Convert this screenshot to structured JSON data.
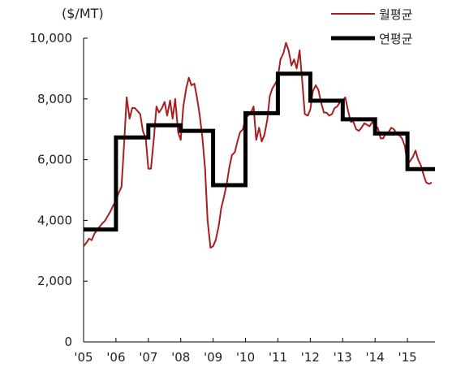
{
  "chart_data": {
    "type": "line",
    "unit_label": "($/MT)",
    "ylim": [
      0,
      10000
    ],
    "yticks": [
      0,
      2000,
      4000,
      6000,
      8000,
      10000
    ],
    "ytick_labels": [
      "0",
      "2,000",
      "4,000",
      "6,000",
      "8,000",
      "10,000"
    ],
    "xlim": [
      2005,
      2015.85
    ],
    "xticks": [
      2005,
      2006,
      2007,
      2008,
      2009,
      2010,
      2011,
      2012,
      2013,
      2014,
      2015
    ],
    "xtick_labels": [
      "'05",
      "'06",
      "'07",
      "'08",
      "'09",
      "'10",
      "'11",
      "'12",
      "'13",
      "'14",
      "'15"
    ],
    "grid": false,
    "legend_position": "top-right",
    "colors": {
      "monthly": "#a81e1e",
      "annual": "#000000"
    },
    "series": [
      {
        "name": "월평균",
        "style": "thin-line",
        "points": [
          [
            2005.0,
            3150
          ],
          [
            2005.08,
            3250
          ],
          [
            2005.17,
            3400
          ],
          [
            2005.25,
            3350
          ],
          [
            2005.33,
            3550
          ],
          [
            2005.42,
            3700
          ],
          [
            2005.5,
            3800
          ],
          [
            2005.58,
            3900
          ],
          [
            2005.67,
            4000
          ],
          [
            2005.75,
            4150
          ],
          [
            2005.83,
            4300
          ],
          [
            2005.92,
            4500
          ],
          [
            2006.0,
            4650
          ],
          [
            2006.08,
            4900
          ],
          [
            2006.17,
            5100
          ],
          [
            2006.25,
            6500
          ],
          [
            2006.33,
            8050
          ],
          [
            2006.42,
            7350
          ],
          [
            2006.5,
            7700
          ],
          [
            2006.58,
            7700
          ],
          [
            2006.67,
            7600
          ],
          [
            2006.75,
            7500
          ],
          [
            2006.83,
            6950
          ],
          [
            2006.92,
            6700
          ],
          [
            2007.0,
            5700
          ],
          [
            2007.08,
            5700
          ],
          [
            2007.17,
            6700
          ],
          [
            2007.25,
            7750
          ],
          [
            2007.33,
            7550
          ],
          [
            2007.42,
            7700
          ],
          [
            2007.5,
            7900
          ],
          [
            2007.58,
            7450
          ],
          [
            2007.67,
            7950
          ],
          [
            2007.75,
            7350
          ],
          [
            2007.83,
            8000
          ],
          [
            2007.92,
            6900
          ],
          [
            2008.0,
            6650
          ],
          [
            2008.08,
            7750
          ],
          [
            2008.17,
            8350
          ],
          [
            2008.25,
            8700
          ],
          [
            2008.33,
            8450
          ],
          [
            2008.42,
            8500
          ],
          [
            2008.5,
            8050
          ],
          [
            2008.58,
            7500
          ],
          [
            2008.67,
            6700
          ],
          [
            2008.75,
            5700
          ],
          [
            2008.83,
            4000
          ],
          [
            2008.92,
            3100
          ],
          [
            2009.0,
            3150
          ],
          [
            2009.08,
            3350
          ],
          [
            2009.17,
            3800
          ],
          [
            2009.25,
            4400
          ],
          [
            2009.33,
            4750
          ],
          [
            2009.42,
            5200
          ],
          [
            2009.5,
            5750
          ],
          [
            2009.58,
            6150
          ],
          [
            2009.67,
            6250
          ],
          [
            2009.75,
            6600
          ],
          [
            2009.83,
            6900
          ],
          [
            2009.92,
            7000
          ],
          [
            2010.0,
            7350
          ],
          [
            2010.08,
            7450
          ],
          [
            2010.17,
            7550
          ],
          [
            2010.25,
            7750
          ],
          [
            2010.33,
            6650
          ],
          [
            2010.42,
            7050
          ],
          [
            2010.5,
            6600
          ],
          [
            2010.58,
            6800
          ],
          [
            2010.67,
            7300
          ],
          [
            2010.75,
            8100
          ],
          [
            2010.83,
            8350
          ],
          [
            2010.92,
            8500
          ],
          [
            2011.0,
            8700
          ],
          [
            2011.08,
            9300
          ],
          [
            2011.17,
            9500
          ],
          [
            2011.25,
            9850
          ],
          [
            2011.33,
            9600
          ],
          [
            2011.42,
            9100
          ],
          [
            2011.5,
            9300
          ],
          [
            2011.58,
            9000
          ],
          [
            2011.67,
            9600
          ],
          [
            2011.75,
            8600
          ],
          [
            2011.83,
            7500
          ],
          [
            2011.92,
            7450
          ],
          [
            2012.0,
            7650
          ],
          [
            2012.08,
            8250
          ],
          [
            2012.17,
            8450
          ],
          [
            2012.25,
            8300
          ],
          [
            2012.33,
            7900
          ],
          [
            2012.42,
            7550
          ],
          [
            2012.5,
            7550
          ],
          [
            2012.58,
            7450
          ],
          [
            2012.67,
            7500
          ],
          [
            2012.75,
            7700
          ],
          [
            2012.83,
            7750
          ],
          [
            2012.92,
            7900
          ],
          [
            2013.0,
            7950
          ],
          [
            2013.08,
            8050
          ],
          [
            2013.17,
            7600
          ],
          [
            2013.25,
            7250
          ],
          [
            2013.33,
            7250
          ],
          [
            2013.42,
            7000
          ],
          [
            2013.5,
            6950
          ],
          [
            2013.58,
            7050
          ],
          [
            2013.67,
            7200
          ],
          [
            2013.75,
            7150
          ],
          [
            2013.83,
            7100
          ],
          [
            2013.92,
            7250
          ],
          [
            2014.0,
            7100
          ],
          [
            2014.08,
            7050
          ],
          [
            2014.17,
            6700
          ],
          [
            2014.25,
            6700
          ],
          [
            2014.33,
            6850
          ],
          [
            2014.42,
            6900
          ],
          [
            2014.5,
            7050
          ],
          [
            2014.58,
            7000
          ],
          [
            2014.67,
            6850
          ],
          [
            2014.75,
            6800
          ],
          [
            2014.83,
            6700
          ],
          [
            2014.92,
            6450
          ],
          [
            2015.0,
            5850
          ],
          [
            2015.08,
            5950
          ],
          [
            2015.17,
            6100
          ],
          [
            2015.25,
            6300
          ],
          [
            2015.33,
            6000
          ],
          [
            2015.42,
            5800
          ],
          [
            2015.5,
            5500
          ],
          [
            2015.58,
            5250
          ],
          [
            2015.67,
            5200
          ],
          [
            2015.75,
            5250
          ]
        ]
      },
      {
        "name": "연평균",
        "style": "thick-step",
        "steps": [
          {
            "start": 2005,
            "end": 2006,
            "value": 3700
          },
          {
            "start": 2006,
            "end": 2007,
            "value": 6730
          },
          {
            "start": 2007,
            "end": 2008,
            "value": 7130
          },
          {
            "start": 2008,
            "end": 2009,
            "value": 6950
          },
          {
            "start": 2009,
            "end": 2010,
            "value": 5160
          },
          {
            "start": 2010,
            "end": 2011,
            "value": 7530
          },
          {
            "start": 2011,
            "end": 2012,
            "value": 8830
          },
          {
            "start": 2012,
            "end": 2013,
            "value": 7940
          },
          {
            "start": 2013,
            "end": 2014,
            "value": 7330
          },
          {
            "start": 2014,
            "end": 2015,
            "value": 6860
          },
          {
            "start": 2015,
            "end": 2015.85,
            "value": 5690
          }
        ]
      }
    ]
  }
}
